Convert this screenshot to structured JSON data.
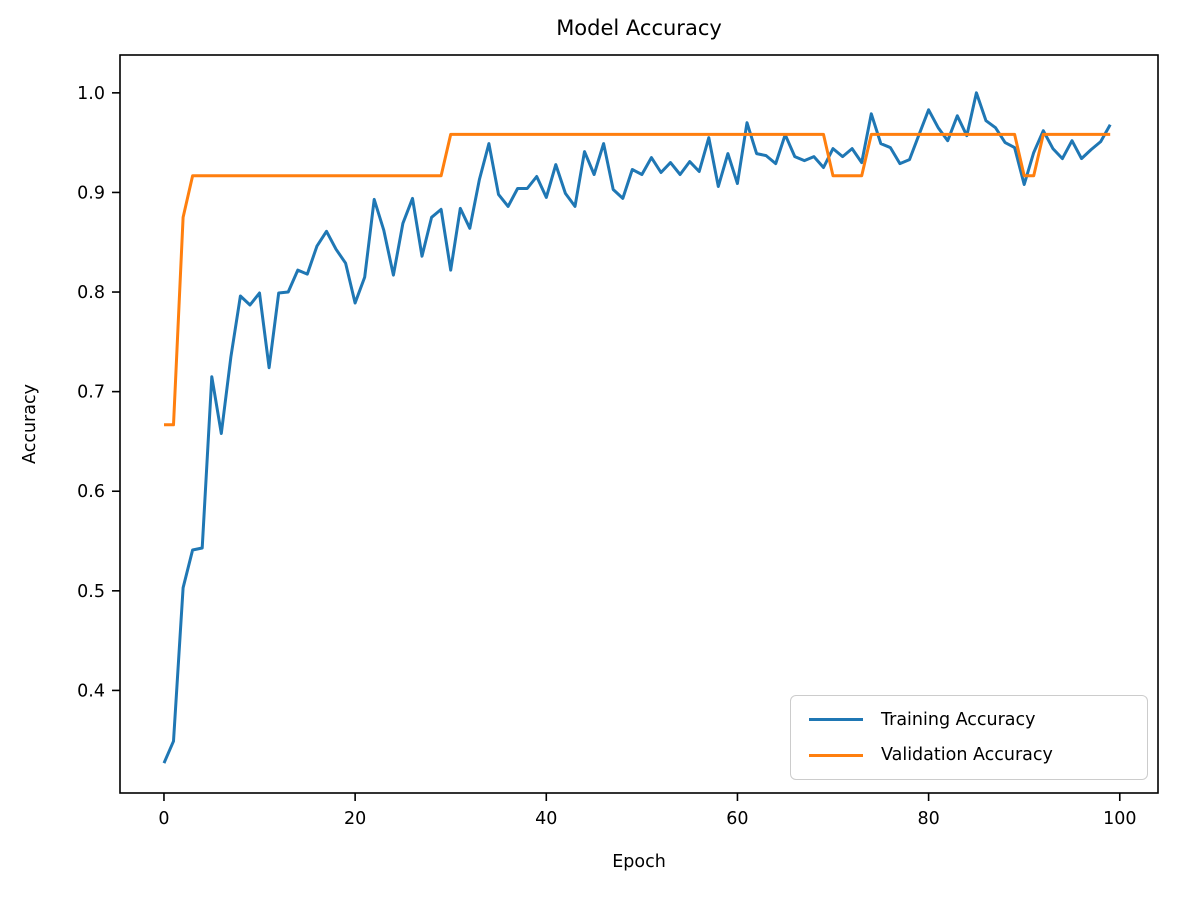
{
  "chart_data": {
    "type": "line",
    "title": "Model Accuracy",
    "xlabel": "Epoch",
    "ylabel": "Accuracy",
    "grid": false,
    "legend_position": "lower right",
    "x_ticks": [
      0,
      20,
      40,
      60,
      80,
      100
    ],
    "y_ticks": [
      0.4,
      0.5,
      0.6,
      0.7,
      0.8,
      0.9,
      1.0
    ],
    "xlim": [
      -4.6,
      104.0
    ],
    "ylim": [
      0.297,
      1.038
    ],
    "x": [
      0,
      1,
      2,
      3,
      4,
      5,
      6,
      7,
      8,
      9,
      10,
      11,
      12,
      13,
      14,
      15,
      16,
      17,
      18,
      19,
      20,
      21,
      22,
      23,
      24,
      25,
      26,
      27,
      28,
      29,
      30,
      31,
      32,
      33,
      34,
      35,
      36,
      37,
      38,
      39,
      40,
      41,
      42,
      43,
      44,
      45,
      46,
      47,
      48,
      49,
      50,
      51,
      52,
      53,
      54,
      55,
      56,
      57,
      58,
      59,
      60,
      61,
      62,
      63,
      64,
      65,
      66,
      67,
      68,
      69,
      70,
      71,
      72,
      73,
      74,
      75,
      76,
      77,
      78,
      79,
      80,
      81,
      82,
      83,
      84,
      85,
      86,
      87,
      88,
      89,
      90,
      91,
      92,
      93,
      94,
      95,
      96,
      97,
      98,
      99
    ],
    "series": [
      {
        "name": "Training Accuracy",
        "color": "#1f77b4",
        "values": [
          0.327,
          0.349,
          0.503,
          0.541,
          0.543,
          0.715,
          0.658,
          0.735,
          0.796,
          0.787,
          0.799,
          0.724,
          0.799,
          0.8,
          0.822,
          0.818,
          0.846,
          0.861,
          0.843,
          0.829,
          0.789,
          0.815,
          0.893,
          0.862,
          0.817,
          0.869,
          0.894,
          0.836,
          0.875,
          0.883,
          0.822,
          0.884,
          0.864,
          0.913,
          0.949,
          0.898,
          0.886,
          0.904,
          0.904,
          0.916,
          0.895,
          0.928,
          0.899,
          0.886,
          0.941,
          0.918,
          0.949,
          0.903,
          0.894,
          0.923,
          0.918,
          0.935,
          0.92,
          0.93,
          0.918,
          0.931,
          0.921,
          0.955,
          0.906,
          0.939,
          0.909,
          0.97,
          0.939,
          0.937,
          0.929,
          0.958,
          0.936,
          0.932,
          0.936,
          0.925,
          0.944,
          0.936,
          0.944,
          0.93,
          0.979,
          0.949,
          0.945,
          0.929,
          0.933,
          0.958,
          0.983,
          0.965,
          0.952,
          0.977,
          0.957,
          1.0,
          0.972,
          0.965,
          0.95,
          0.945,
          0.908,
          0.94,
          0.962,
          0.944,
          0.934,
          0.952,
          0.934,
          0.943,
          0.951,
          0.968
        ]
      },
      {
        "name": "Validation Accuracy",
        "color": "#ff7f0e",
        "values": [
          0.6667,
          0.6667,
          0.875,
          0.9167,
          0.9167,
          0.9167,
          0.9167,
          0.9167,
          0.9167,
          0.9167,
          0.9167,
          0.9167,
          0.9167,
          0.9167,
          0.9167,
          0.9167,
          0.9167,
          0.9167,
          0.9167,
          0.9167,
          0.9167,
          0.9167,
          0.9167,
          0.9167,
          0.9167,
          0.9167,
          0.9167,
          0.9167,
          0.9167,
          0.9167,
          0.9583,
          0.9583,
          0.9583,
          0.9583,
          0.9583,
          0.9583,
          0.9583,
          0.9583,
          0.9583,
          0.9583,
          0.9583,
          0.9583,
          0.9583,
          0.9583,
          0.9583,
          0.9583,
          0.9583,
          0.9583,
          0.9583,
          0.9583,
          0.9583,
          0.9583,
          0.9583,
          0.9583,
          0.9583,
          0.9583,
          0.9583,
          0.9583,
          0.9583,
          0.9583,
          0.9583,
          0.9583,
          0.9583,
          0.9583,
          0.9583,
          0.9583,
          0.9583,
          0.9583,
          0.9583,
          0.9583,
          0.9167,
          0.9167,
          0.9167,
          0.9167,
          0.9583,
          0.9583,
          0.9583,
          0.9583,
          0.9583,
          0.9583,
          0.9583,
          0.9583,
          0.9583,
          0.9583,
          0.9583,
          0.9583,
          0.9583,
          0.9583,
          0.9583,
          0.9583,
          0.9167,
          0.9167,
          0.9583,
          0.9583,
          0.9583,
          0.9583,
          0.9583,
          0.9583,
          0.9583,
          0.9583
        ]
      }
    ]
  },
  "legend": {
    "items": [
      "Training Accuracy",
      "Validation Accuracy"
    ]
  }
}
